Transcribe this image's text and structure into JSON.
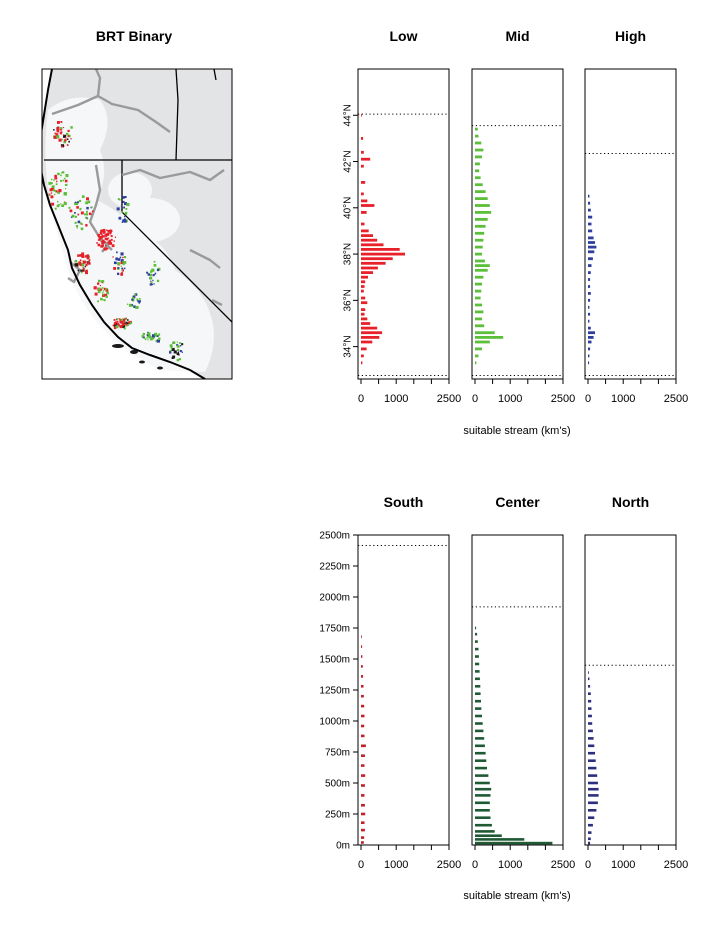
{
  "map": {
    "title": "BRT Binary",
    "colors": {
      "land": "#e3e4e6",
      "buffer": "#f6f7f8",
      "border": "#000000",
      "river": "#9a9a9a",
      "low": "#e8202a",
      "mid": "#5cbf3a",
      "high": "#2e3f9e",
      "dark": "#1a1a1a"
    }
  },
  "chart_data": [
    {
      "type": "bar",
      "orientation": "horizontal",
      "title": "Low",
      "color": "#e8202a",
      "x_ticks": [
        "0",
        "1000",
        "2500"
      ],
      "xlim": [
        0,
        2500
      ],
      "y_ticks": [
        "34°N",
        "36°N",
        "38°N",
        "40°N",
        "42°N",
        "44°N"
      ],
      "y_tick_values": [
        34,
        36,
        38,
        40,
        42,
        44
      ],
      "ylim": [
        32.6,
        46.0
      ],
      "reference_lines": [
        44.05,
        32.75
      ],
      "bars": [
        [
          44.0,
          20
        ],
        [
          43.0,
          60
        ],
        [
          42.4,
          80
        ],
        [
          42.1,
          260
        ],
        [
          41.8,
          80
        ],
        [
          41.1,
          120
        ],
        [
          40.6,
          80
        ],
        [
          40.3,
          180
        ],
        [
          40.1,
          380
        ],
        [
          39.8,
          160
        ],
        [
          39.3,
          100
        ],
        [
          39.0,
          220
        ],
        [
          38.8,
          340
        ],
        [
          38.6,
          460
        ],
        [
          38.4,
          640
        ],
        [
          38.2,
          1100
        ],
        [
          38.0,
          1250
        ],
        [
          37.8,
          900
        ],
        [
          37.6,
          700
        ],
        [
          37.4,
          480
        ],
        [
          37.2,
          340
        ],
        [
          37.0,
          200
        ],
        [
          36.8,
          120
        ],
        [
          36.6,
          100
        ],
        [
          36.4,
          80
        ],
        [
          36.1,
          120
        ],
        [
          35.9,
          180
        ],
        [
          35.6,
          120
        ],
        [
          35.4,
          100
        ],
        [
          35.2,
          180
        ],
        [
          35.0,
          260
        ],
        [
          34.8,
          460
        ],
        [
          34.6,
          600
        ],
        [
          34.4,
          520
        ],
        [
          34.2,
          320
        ],
        [
          33.9,
          160
        ],
        [
          33.6,
          80
        ],
        [
          33.3,
          40
        ]
      ]
    },
    {
      "type": "bar",
      "orientation": "horizontal",
      "title": "Mid",
      "color": "#5cbf3a",
      "x_ticks": [
        "0",
        "1000",
        "2500"
      ],
      "xlim": [
        0,
        2500
      ],
      "reference_lines": [
        43.55,
        32.75
      ],
      "bars": [
        [
          43.4,
          80
        ],
        [
          43.1,
          100
        ],
        [
          42.8,
          180
        ],
        [
          42.5,
          240
        ],
        [
          42.2,
          200
        ],
        [
          41.9,
          140
        ],
        [
          41.6,
          120
        ],
        [
          41.3,
          160
        ],
        [
          41.0,
          220
        ],
        [
          40.7,
          300
        ],
        [
          40.4,
          360
        ],
        [
          40.1,
          420
        ],
        [
          39.8,
          460
        ],
        [
          39.5,
          360
        ],
        [
          39.2,
          300
        ],
        [
          38.9,
          260
        ],
        [
          38.6,
          240
        ],
        [
          38.3,
          220
        ],
        [
          38.0,
          200
        ],
        [
          37.7,
          280
        ],
        [
          37.5,
          420
        ],
        [
          37.3,
          360
        ],
        [
          37.0,
          240
        ],
        [
          36.7,
          200
        ],
        [
          36.4,
          180
        ],
        [
          36.1,
          160
        ],
        [
          35.8,
          200
        ],
        [
          35.5,
          240
        ],
        [
          35.2,
          200
        ],
        [
          34.9,
          260
        ],
        [
          34.6,
          560
        ],
        [
          34.4,
          800
        ],
        [
          34.2,
          420
        ],
        [
          33.9,
          200
        ],
        [
          33.6,
          100
        ],
        [
          33.3,
          40
        ]
      ]
    },
    {
      "type": "bar",
      "orientation": "horizontal",
      "title": "High",
      "color": "#2e3f9e",
      "x_ticks": [
        "0",
        "1000",
        "2500"
      ],
      "xlim": [
        0,
        2500
      ],
      "reference_lines": [
        42.35,
        32.75
      ],
      "bars": [
        [
          40.5,
          40
        ],
        [
          40.2,
          60
        ],
        [
          39.9,
          80
        ],
        [
          39.6,
          120
        ],
        [
          39.3,
          100
        ],
        [
          39.0,
          120
        ],
        [
          38.7,
          160
        ],
        [
          38.5,
          200
        ],
        [
          38.3,
          240
        ],
        [
          38.1,
          180
        ],
        [
          37.8,
          140
        ],
        [
          37.5,
          100
        ],
        [
          37.2,
          80
        ],
        [
          36.9,
          60
        ],
        [
          36.6,
          60
        ],
        [
          36.3,
          80
        ],
        [
          36.0,
          60
        ],
        [
          35.7,
          40
        ],
        [
          35.4,
          60
        ],
        [
          35.1,
          40
        ],
        [
          34.8,
          80
        ],
        [
          34.6,
          200
        ],
        [
          34.4,
          160
        ],
        [
          34.2,
          100
        ],
        [
          33.9,
          60
        ],
        [
          33.6,
          40
        ],
        [
          33.3,
          30
        ]
      ]
    },
    {
      "type": "bar",
      "orientation": "horizontal",
      "title": "South",
      "color": "#c21f2b",
      "x_ticks": [
        "0",
        "1000",
        "2500"
      ],
      "xlim": [
        0,
        2500
      ],
      "y_ticks": [
        "0m",
        "250m",
        "500m",
        "750m",
        "1000m",
        "1250m",
        "1500m",
        "1750m",
        "2000m",
        "2250m",
        "2500m"
      ],
      "y_tick_values": [
        0,
        250,
        500,
        750,
        1000,
        1250,
        1500,
        1750,
        2000,
        2250,
        2500
      ],
      "ylim": [
        0,
        2500
      ],
      "reference_lines": [
        2415
      ],
      "bars": [
        [
          20,
          80
        ],
        [
          60,
          90
        ],
        [
          120,
          110
        ],
        [
          180,
          100
        ],
        [
          250,
          120
        ],
        [
          320,
          110
        ],
        [
          400,
          100
        ],
        [
          480,
          110
        ],
        [
          560,
          120
        ],
        [
          640,
          100
        ],
        [
          720,
          110
        ],
        [
          800,
          140
        ],
        [
          880,
          100
        ],
        [
          960,
          90
        ],
        [
          1040,
          100
        ],
        [
          1120,
          90
        ],
        [
          1200,
          80
        ],
        [
          1280,
          70
        ],
        [
          1360,
          60
        ],
        [
          1440,
          50
        ],
        [
          1520,
          40
        ],
        [
          1600,
          30
        ],
        [
          1680,
          20
        ]
      ]
    },
    {
      "type": "bar",
      "orientation": "horizontal",
      "title": "Center",
      "color": "#1f5a34",
      "x_ticks": [
        "0",
        "1000",
        "2500"
      ],
      "xlim": [
        0,
        2500
      ],
      "reference_lines": [
        1920
      ],
      "bars": [
        [
          15,
          2200
        ],
        [
          45,
          1400
        ],
        [
          75,
          760
        ],
        [
          110,
          560
        ],
        [
          160,
          480
        ],
        [
          220,
          440
        ],
        [
          280,
          420
        ],
        [
          340,
          420
        ],
        [
          400,
          440
        ],
        [
          450,
          460
        ],
        [
          500,
          420
        ],
        [
          560,
          380
        ],
        [
          620,
          340
        ],
        [
          680,
          320
        ],
        [
          740,
          300
        ],
        [
          800,
          280
        ],
        [
          860,
          260
        ],
        [
          920,
          240
        ],
        [
          980,
          220
        ],
        [
          1040,
          200
        ],
        [
          1100,
          180
        ],
        [
          1160,
          170
        ],
        [
          1220,
          160
        ],
        [
          1280,
          150
        ],
        [
          1340,
          140
        ],
        [
          1400,
          130
        ],
        [
          1460,
          120
        ],
        [
          1520,
          110
        ],
        [
          1580,
          100
        ],
        [
          1640,
          80
        ],
        [
          1700,
          60
        ],
        [
          1750,
          30
        ]
      ]
    },
    {
      "type": "bar",
      "orientation": "horizontal",
      "title": "North",
      "color": "#2c2f7e",
      "x_ticks": [
        "0",
        "1000",
        "2500"
      ],
      "xlim": [
        0,
        2500
      ],
      "reference_lines": [
        1450
      ],
      "bars": [
        [
          15,
          60
        ],
        [
          50,
          80
        ],
        [
          100,
          100
        ],
        [
          160,
          140
        ],
        [
          220,
          180
        ],
        [
          280,
          240
        ],
        [
          340,
          280
        ],
        [
          400,
          300
        ],
        [
          450,
          300
        ],
        [
          500,
          280
        ],
        [
          560,
          260
        ],
        [
          620,
          240
        ],
        [
          680,
          220
        ],
        [
          740,
          200
        ],
        [
          800,
          180
        ],
        [
          860,
          160
        ],
        [
          920,
          140
        ],
        [
          980,
          120
        ],
        [
          1040,
          110
        ],
        [
          1100,
          100
        ],
        [
          1160,
          90
        ],
        [
          1220,
          80
        ],
        [
          1280,
          60
        ],
        [
          1340,
          40
        ],
        [
          1390,
          20
        ]
      ]
    }
  ],
  "axis_caption_top": "suitable stream (km's)",
  "axis_caption_bottom": "suitable stream (km's)"
}
